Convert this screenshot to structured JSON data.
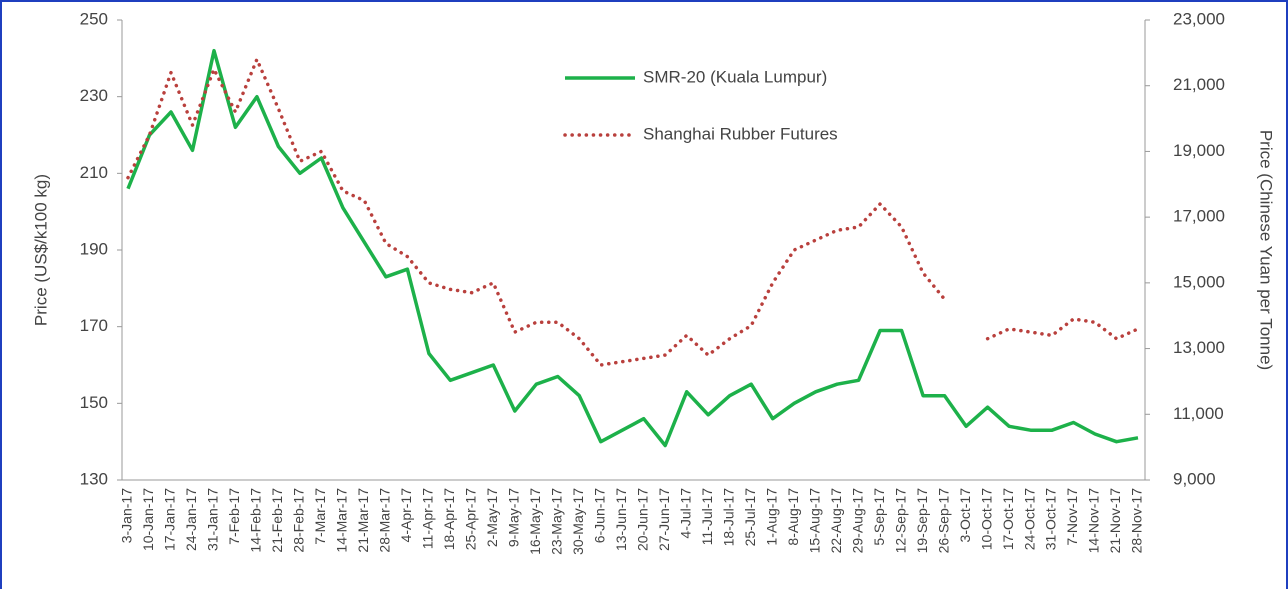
{
  "chart_data": {
    "type": "line",
    "y_label": "Price (US$/k100 kg)",
    "y2_label": "Price  (Chinese Yuan per Tonne)",
    "categories": [
      "3-Jan-17",
      "10-Jan-17",
      "17-Jan-17",
      "24-Jan-17",
      "31-Jan-17",
      "7-Feb-17",
      "14-Feb-17",
      "21-Feb-17",
      "28-Feb-17",
      "7-Mar-17",
      "14-Mar-17",
      "21-Mar-17",
      "28-Mar-17",
      "4-Apr-17",
      "11-Apr-17",
      "18-Apr-17",
      "25-Apr-17",
      "2-May-17",
      "9-May-17",
      "16-May-17",
      "23-May-17",
      "30-May-17",
      "6-Jun-17",
      "13-Jun-17",
      "20-Jun-17",
      "27-Jun-17",
      "4-Jul-17",
      "11-Jul-17",
      "18-Jul-17",
      "25-Jul-17",
      "1-Aug-17",
      "8-Aug-17",
      "15-Aug-17",
      "22-Aug-17",
      "29-Aug-17",
      "5-Sep-17",
      "12-Sep-17",
      "19-Sep-17",
      "26-Sep-17",
      "3-Oct-17",
      "10-Oct-17",
      "17-Oct-17",
      "24-Oct-17",
      "31-Oct-17",
      "7-Nov-17",
      "14-Nov-17",
      "21-Nov-17",
      "28-Nov-17"
    ],
    "series": [
      {
        "name": "SMR-20 (Kuala Lumpur)",
        "color": "#1db14a",
        "axis": "y",
        "values": [
          206,
          220,
          226,
          216,
          242,
          222,
          230,
          217,
          210,
          214,
          201,
          192,
          183,
          185,
          163,
          156,
          158,
          160,
          148,
          155,
          157,
          152,
          140,
          143,
          146,
          139,
          153,
          147,
          152,
          155,
          146,
          150,
          153,
          155,
          156,
          169,
          169,
          152,
          152,
          144,
          149,
          144,
          143,
          143,
          145,
          142,
          140,
          141
        ]
      },
      {
        "name": "Shanghai Rubber Futures",
        "color": "#b9403d",
        "axis": "y2",
        "values": [
          18200,
          19500,
          21400,
          19800,
          21500,
          20200,
          21800,
          20300,
          18700,
          19000,
          17800,
          17500,
          16200,
          15800,
          15000,
          14800,
          14700,
          15000,
          13500,
          13800,
          13800,
          13300,
          12500,
          12600,
          12700,
          12800,
          13400,
          12800,
          13300,
          13700,
          15000,
          16000,
          16300,
          16600,
          16700,
          17400,
          16700,
          15300,
          14500,
          null,
          13300,
          13600,
          13500,
          13400,
          13900,
          13800,
          13300,
          13600
        ]
      }
    ],
    "ylim": [
      130,
      250
    ],
    "yticks": [
      130,
      150,
      170,
      190,
      210,
      230,
      250
    ],
    "y2lim": [
      9000,
      23000
    ],
    "y2ticks": [
      {
        "value": 9000,
        "label": "9,000"
      },
      {
        "value": 11000,
        "label": "11,000"
      },
      {
        "value": 13000,
        "label": "13,000"
      },
      {
        "value": 15000,
        "label": "15,000"
      },
      {
        "value": 17000,
        "label": "17,000"
      },
      {
        "value": 19000,
        "label": "19,000"
      },
      {
        "value": 21000,
        "label": "21,000"
      },
      {
        "value": 23000,
        "label": "23,000"
      }
    ],
    "grid": false
  }
}
